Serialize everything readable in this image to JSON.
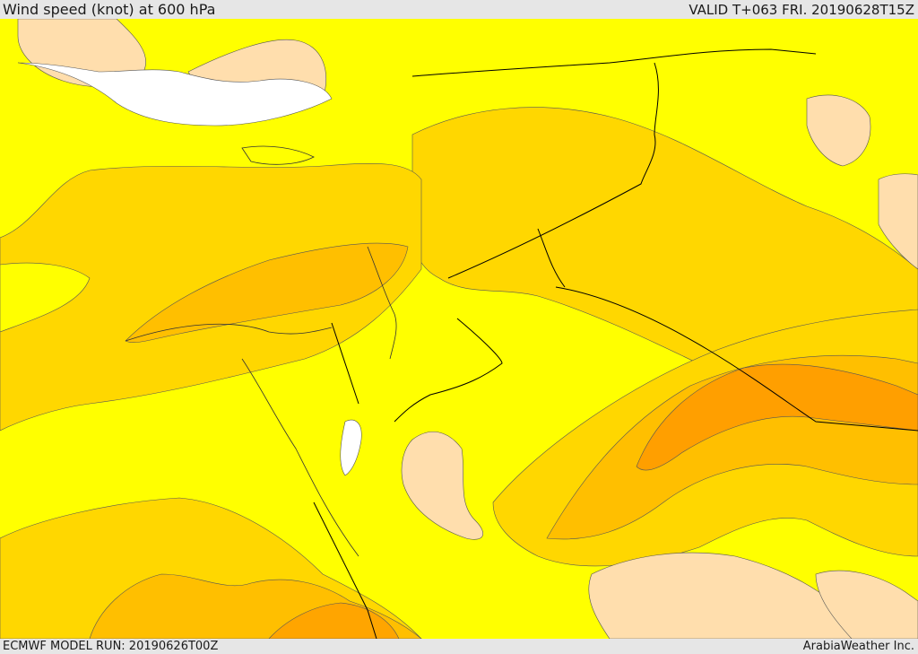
{
  "header": {
    "title": "Wind speed (knot) at 600 hPa",
    "valid_time": "VALID T+063 FRI. 20190628T15Z"
  },
  "footer": {
    "model_run": "ECMWF MODEL RUN: 20190626T00Z",
    "credit": "ArabiaWeather Inc."
  },
  "map": {
    "palette": {
      "calm_white": "#ffffff",
      "light_peach": "#ffdead",
      "yellow": "#ffff00",
      "gold": "#ffd700",
      "amber": "#ffbf00",
      "orange": "#ff9f00",
      "deep_orange": "#ff8800",
      "boundary_line": "#000000"
    }
  }
}
